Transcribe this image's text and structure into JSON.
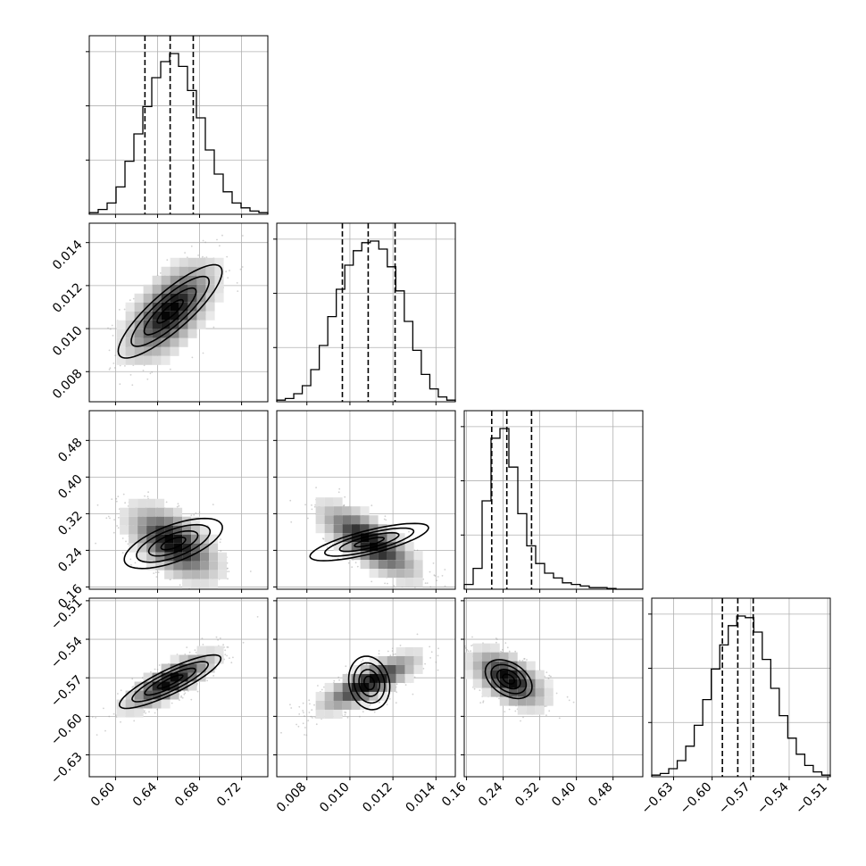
{
  "chart_data": {
    "type": "corner",
    "grid": true,
    "parameters": [
      {
        "range": [
          0.575,
          0.745
        ],
        "quantiles": [
          0.628,
          0.652,
          0.674
        ],
        "ticks": [
          0.6,
          0.64,
          0.68,
          0.72
        ],
        "tick_labels": [
          "0.60",
          "0.64",
          "0.68",
          "0.72"
        ],
        "hist": [
          0.01,
          0.03,
          0.07,
          0.17,
          0.33,
          0.5,
          0.67,
          0.85,
          0.95,
          1.0,
          0.92,
          0.77,
          0.6,
          0.4,
          0.25,
          0.14,
          0.07,
          0.04,
          0.02,
          0.01
        ]
      },
      {
        "range": [
          0.0066,
          0.0149
        ],
        "quantiles": [
          0.00965,
          0.01085,
          0.0121
        ],
        "ticks": [
          0.008,
          0.01,
          0.012,
          0.014
        ],
        "tick_labels": [
          "0.008",
          "0.010",
          "0.012",
          "0.014"
        ],
        "hist": [
          0.01,
          0.02,
          0.05,
          0.1,
          0.2,
          0.35,
          0.53,
          0.7,
          0.85,
          0.94,
          0.99,
          1.0,
          0.95,
          0.84,
          0.69,
          0.5,
          0.32,
          0.17,
          0.08,
          0.03,
          0.01
        ]
      },
      {
        "range": [
          0.155,
          0.545
        ],
        "quantiles": [
          0.215,
          0.248,
          0.302
        ],
        "ticks": [
          0.16,
          0.24,
          0.32,
          0.4,
          0.48
        ],
        "tick_labels": [
          "0.16",
          "0.24",
          "0.32",
          "0.40",
          "0.48"
        ],
        "hist": [
          0.03,
          0.13,
          0.55,
          0.94,
          1.0,
          0.76,
          0.47,
          0.27,
          0.16,
          0.1,
          0.07,
          0.04,
          0.03,
          0.02,
          0.01,
          0.01,
          0.005,
          0.0,
          0.0,
          0.0
        ]
      },
      {
        "range": [
          -0.647,
          -0.508
        ],
        "quantiles": [
          -0.592,
          -0.58,
          -0.568
        ],
        "ticks": [
          -0.63,
          -0.6,
          -0.57,
          -0.54,
          -0.51
        ],
        "tick_labels": [
          "−0.63",
          "−0.60",
          "−0.57",
          "−0.54",
          "−0.51"
        ],
        "hist": [
          0.01,
          0.02,
          0.05,
          0.1,
          0.19,
          0.32,
          0.48,
          0.67,
          0.82,
          0.94,
          1.0,
          0.99,
          0.9,
          0.73,
          0.55,
          0.38,
          0.24,
          0.14,
          0.07,
          0.03,
          0.01
        ]
      }
    ],
    "pairs": [
      {
        "x": 0,
        "y": 1,
        "mean": [
          0.652,
          0.0108
        ],
        "corr": 0.6
      },
      {
        "x": 0,
        "y": 2,
        "mean": [
          0.655,
          0.255
        ],
        "corr": -0.55
      },
      {
        "x": 1,
        "y": 2,
        "mean": [
          0.0109,
          0.258
        ],
        "corr": -0.75
      },
      {
        "x": 0,
        "y": 3,
        "mean": [
          0.652,
          -0.573
        ],
        "corr": 0.8
      },
      {
        "x": 1,
        "y": 3,
        "mean": [
          0.0109,
          -0.574
        ],
        "corr": 0.8
      },
      {
        "x": 2,
        "y": 3,
        "mean": [
          0.252,
          -0.571
        ],
        "corr": -0.55
      }
    ]
  }
}
